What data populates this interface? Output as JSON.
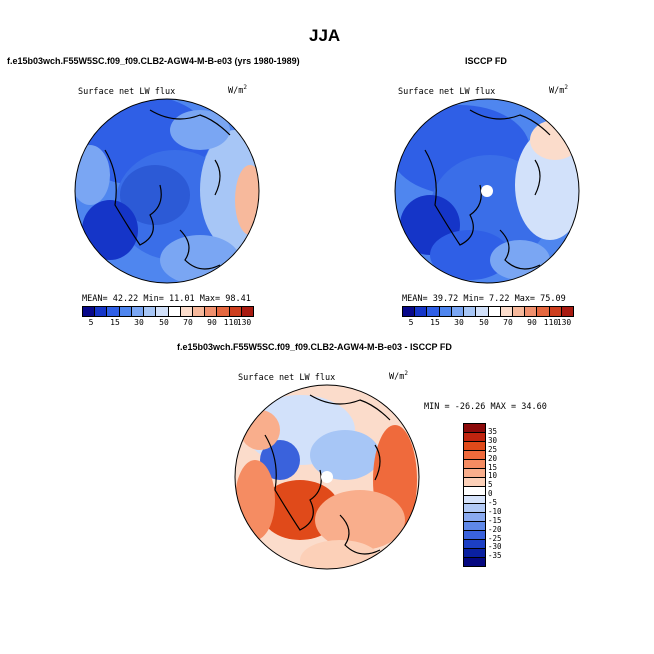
{
  "header": {
    "title": "JJA"
  },
  "panels": {
    "left": {
      "heading": "f.e15b03wch.F55W5SC.f09_f09.CLB2-AGW4-M-B-e03 (yrs 1980-1989)",
      "variable": "Surface net LW flux",
      "units_base": "W/m",
      "units_exp": "2",
      "stats": "MEAN=  42.22  Min=  11.01  Max=  98.41"
    },
    "right": {
      "heading": "ISCCP FD",
      "variable": "Surface net LW flux",
      "units_base": "W/m",
      "units_exp": "2",
      "stats": "MEAN=  39.72  Min=   7.22  Max=  75.09"
    },
    "diff": {
      "heading": "f.e15b03wch.F55W5SC.f09_f09.CLB2-AGW4-M-B-e03 - ISCCP FD",
      "variable": "Surface net LW flux",
      "units_base": "W/m",
      "units_exp": "2",
      "stats": "MIN = -26.26 MAX =  34.60"
    }
  },
  "colorbar_abs": {
    "labels": [
      "5",
      "15",
      "30",
      "50",
      "70",
      "90",
      "110",
      "130"
    ],
    "colors": [
      "#08088a",
      "#1535c8",
      "#2f5fe6",
      "#4f86ef",
      "#7aa6f3",
      "#a7c6f6",
      "#d2e1fa",
      "#ffffff",
      "#fbdccb",
      "#f7b99c",
      "#f0906e",
      "#e4673f",
      "#cd3e1e",
      "#a81a10"
    ]
  },
  "colorbar_diff": {
    "labels": [
      "35",
      "30",
      "25",
      "20",
      "15",
      "10",
      "5",
      "0",
      "-5",
      "-10",
      "-15",
      "-20",
      "-25",
      "-30",
      "-35"
    ],
    "colors": [
      "#8c0a0a",
      "#c0240f",
      "#e04a1a",
      "#ef6a3c",
      "#f58c62",
      "#f9ae8c",
      "#fcd0b8",
      "#ffffff",
      "#d6e3fb",
      "#b2caf6",
      "#8aaaf0",
      "#5f88e8",
      "#3a62dc",
      "#1c3fc4",
      "#0a20a0",
      "#050880"
    ]
  }
}
